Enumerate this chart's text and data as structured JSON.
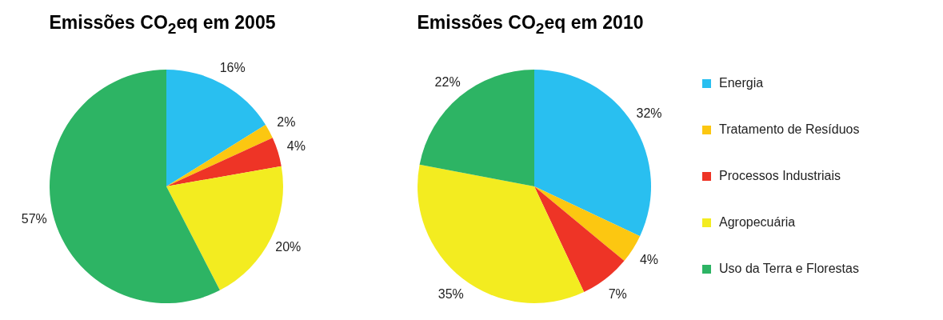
{
  "chart_data": [
    {
      "type": "pie",
      "title": "Emissões CO$_{2}$eq em 2005",
      "categories": [
        null,
        null,
        null,
        null,
        null
      ],
      "values": [
        16,
        2,
        4,
        20,
        57
      ],
      "value_labels": [
        "16%",
        "2%",
        "4%",
        "20%",
        "57%"
      ],
      "colors": [
        "#29bff0",
        "#fcc711",
        "#ee3426",
        "#f3ec20",
        "#2db464"
      ],
      "legend": false
    },
    {
      "type": "pie",
      "title": "Emissões CO$_{2}$eq em 2010",
      "categories": [
        "Energia",
        "Tratamento de Resíduos",
        "Processos Industriais",
        "Agropecuária",
        "Uso da Terra e Florestas"
      ],
      "values": [
        32,
        4,
        7,
        35,
        22
      ],
      "value_labels": [
        "32%",
        "4%",
        "7%",
        "35%",
        "22%"
      ],
      "colors": [
        "#29bff0",
        "#fcc711",
        "#ee3426",
        "#f3ec20",
        "#2db464"
      ],
      "legend": "right"
    }
  ]
}
